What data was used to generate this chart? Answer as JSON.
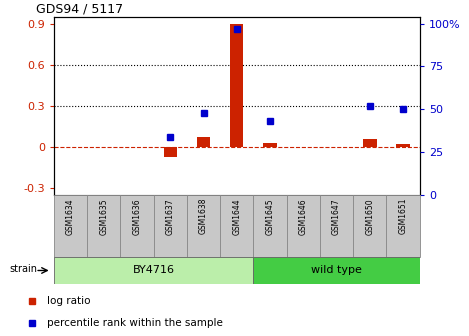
{
  "title": "GDS94 / 5117",
  "samples": [
    "GSM1634",
    "GSM1635",
    "GSM1636",
    "GSM1637",
    "GSM1638",
    "GSM1644",
    "GSM1645",
    "GSM1646",
    "GSM1647",
    "GSM1650",
    "GSM1651"
  ],
  "log_ratio": [
    0.0,
    0.0,
    0.0,
    -0.07,
    0.07,
    0.9,
    0.03,
    0.0,
    0.0,
    0.06,
    0.02
  ],
  "percentile_rank": [
    null,
    null,
    null,
    34,
    48,
    97,
    43,
    null,
    null,
    52,
    50
  ],
  "groups": [
    {
      "label": "BY4716",
      "start": 0,
      "end": 6,
      "color": "#BBEEAA"
    },
    {
      "label": "wild type",
      "start": 6,
      "end": 11,
      "color": "#44CC44"
    }
  ],
  "ylim_left": [
    -0.35,
    0.95
  ],
  "ylim_right": [
    0,
    104
  ],
  "yticks_left": [
    -0.3,
    0.0,
    0.3,
    0.6,
    0.9
  ],
  "ytick_labels_left": [
    "-0.3",
    "0",
    "0.3",
    "0.6",
    "0.9"
  ],
  "yticks_right": [
    0,
    25,
    50,
    75,
    100
  ],
  "ytick_labels_right": [
    "0",
    "25",
    "50",
    "75",
    "100%"
  ],
  "hlines": [
    0.3,
    0.6
  ],
  "bar_color_red": "#CC2200",
  "bar_color_blue": "#0000CC",
  "dashed_line_color": "#CC2200",
  "legend_red_label": "log ratio",
  "legend_blue_label": "percentile rank within the sample",
  "strain_label": "strain",
  "tick_label_color_left": "#CC2200",
  "tick_label_color_right": "#0000CC",
  "bar_width": 0.4,
  "marker_size": 5,
  "group_box_color": "#C8C8C8",
  "group_box_edge": "#888888"
}
